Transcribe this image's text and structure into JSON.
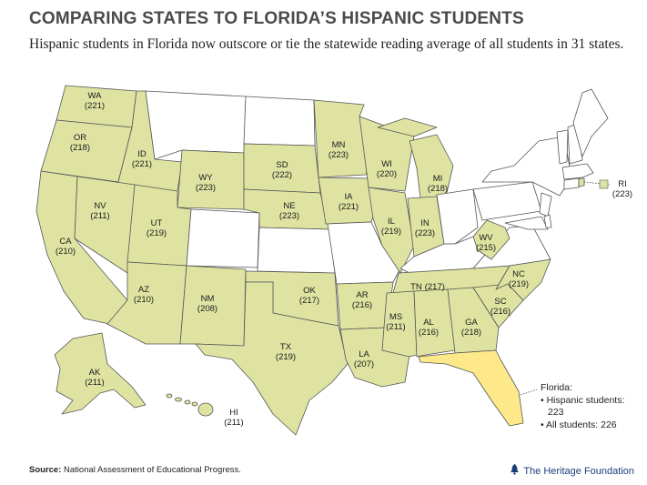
{
  "header": {
    "title": "COMPARING STATES TO FLORIDA’S HISPANIC STUDENTS",
    "subtitle": "Hispanic students in Florida now outscore or tie the statewide reading average of all students in 31 states."
  },
  "colors": {
    "highlight": "#dfe3a2",
    "florida": "#fde98a",
    "other": "#ffffff",
    "border": "#555555"
  },
  "states": [
    {
      "abbr": "WA",
      "score": "(221)"
    },
    {
      "abbr": "OR",
      "score": "(218)"
    },
    {
      "abbr": "ID",
      "score": "(221)"
    },
    {
      "abbr": "CA",
      "score": "(210)"
    },
    {
      "abbr": "NV",
      "score": "(211)"
    },
    {
      "abbr": "UT",
      "score": "(219)"
    },
    {
      "abbr": "AZ",
      "score": "(210)"
    },
    {
      "abbr": "WY",
      "score": "(223)"
    },
    {
      "abbr": "NM",
      "score": "(208)"
    },
    {
      "abbr": "SD",
      "score": "(222)"
    },
    {
      "abbr": "NE",
      "score": "(223)"
    },
    {
      "abbr": "OK",
      "score": "(217)"
    },
    {
      "abbr": "TX",
      "score": "(219)"
    },
    {
      "abbr": "MN",
      "score": "(223)"
    },
    {
      "abbr": "IA",
      "score": "(221)"
    },
    {
      "abbr": "AR",
      "score": "(216)"
    },
    {
      "abbr": "LA",
      "score": "(207)"
    },
    {
      "abbr": "WI",
      "score": "(220)"
    },
    {
      "abbr": "IL",
      "score": "(219)"
    },
    {
      "abbr": "MI",
      "score": "(218)"
    },
    {
      "abbr": "IN",
      "score": "(223)"
    },
    {
      "abbr": "MS",
      "score": "(211)"
    },
    {
      "abbr": "AL",
      "score": "(216)"
    },
    {
      "abbr": "TN",
      "score": "(217)"
    },
    {
      "abbr": "GA",
      "score": "(218)"
    },
    {
      "abbr": "SC",
      "score": "(216)"
    },
    {
      "abbr": "NC",
      "score": "(219)"
    },
    {
      "abbr": "WV",
      "score": "(215)"
    },
    {
      "abbr": "RI",
      "score": "(223)"
    },
    {
      "abbr": "AK",
      "score": "(211)"
    },
    {
      "abbr": "HI",
      "score": "(211)"
    }
  ],
  "florida_note": {
    "heading": "Florida:",
    "line1": "• Hispanic students:",
    "line1_value": "223",
    "line2": "• All students: 226"
  },
  "footer": {
    "source_label": "Source:",
    "source_text": "National Assessment of Educational Progress.",
    "brand": "The Heritage Foundation",
    "brand_icon": "liberty-bell-icon"
  }
}
